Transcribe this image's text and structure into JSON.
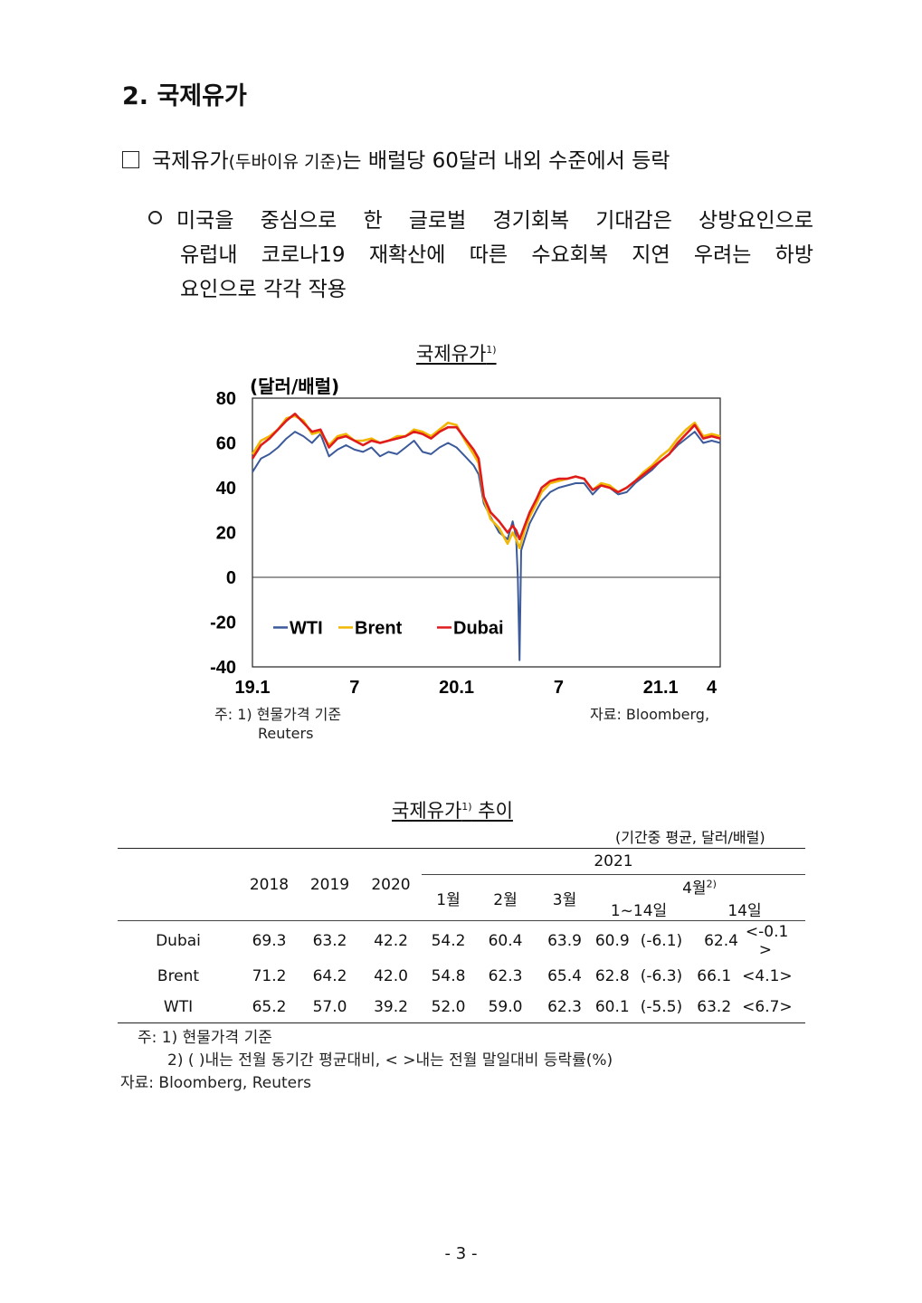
{
  "heading": "2. 국제유가",
  "bullet": {
    "main": "국제유가",
    "paren": "(두바이유 기준)",
    "rest": "는 배럴당 60달러 내외 수준에서 등락"
  },
  "sub": {
    "line1": "미국을 중심으로 한 글로벌 경기회복 기대감은 상방요인으로",
    "line2": "유럽내 코로나19 재확산에 따른 수요회복 지연 우려는 하방",
    "line3": "요인으로 각각 작용"
  },
  "chart_title": "국제유가",
  "chart_title_sup": "1)",
  "chart_data": {
    "type": "line",
    "ylabel": "(달러/배럴)",
    "ylim": [
      -40,
      80
    ],
    "yticks": [
      "80",
      "60",
      "40",
      "20",
      "0",
      "-20",
      "-40"
    ],
    "xticks": [
      "19.1",
      "7",
      "20.1",
      "7",
      "21.1",
      "4"
    ],
    "xtick_positions": [
      0,
      6,
      12,
      18,
      24,
      27
    ],
    "xlim": [
      0,
      27.5
    ],
    "legend": [
      "WTI",
      "Brent",
      "Dubai"
    ],
    "legend_placement": "bottom-left",
    "series": [
      {
        "name": "WTI",
        "color": "#3c5a9a",
        "x": [
          0,
          0.5,
          1,
          1.5,
          2,
          2.5,
          3,
          3.5,
          4,
          4.5,
          5,
          5.5,
          6,
          6.5,
          7,
          7.5,
          8,
          8.5,
          9,
          9.5,
          10,
          10.5,
          11,
          11.5,
          12,
          12.5,
          13,
          13.3,
          13.6,
          14,
          14.5,
          15,
          15.3,
          15.5,
          15.6,
          15.7,
          15.8,
          16,
          16.3,
          16.7,
          17,
          17.5,
          18,
          18.5,
          19,
          19.5,
          20,
          20.5,
          21,
          21.5,
          22,
          22.5,
          23,
          23.5,
          24,
          24.5,
          25,
          25.5,
          26,
          26.5,
          27,
          27.5
        ],
        "y": [
          47,
          53,
          55,
          58,
          62,
          65,
          63,
          60,
          64,
          54,
          57,
          59,
          57,
          56,
          58,
          54,
          56,
          55,
          58,
          61,
          56,
          55,
          58,
          60,
          58,
          54,
          50,
          46,
          33,
          27,
          20,
          17,
          25,
          18,
          0,
          -37,
          12,
          17,
          24,
          30,
          34,
          38,
          40,
          41,
          42,
          42,
          37,
          41,
          40,
          37,
          38,
          42,
          45,
          48,
          52,
          55,
          59,
          62,
          65,
          60,
          61,
          60
        ]
      },
      {
        "name": "Brent",
        "color": "#f2b705",
        "x": [
          0,
          0.5,
          1,
          1.5,
          2,
          2.5,
          3,
          3.5,
          4,
          4.5,
          5,
          5.5,
          6,
          6.5,
          7,
          7.5,
          8,
          8.5,
          9,
          9.5,
          10,
          10.5,
          11,
          11.5,
          12,
          12.5,
          13,
          13.3,
          13.6,
          14,
          14.5,
          15,
          15.3,
          15.5,
          15.7,
          16,
          16.3,
          16.7,
          17,
          17.5,
          18,
          18.5,
          19,
          19.5,
          20,
          20.5,
          21,
          21.5,
          22,
          22.5,
          23,
          23.5,
          24,
          24.5,
          25,
          25.5,
          26,
          26.5,
          27,
          27.5
        ],
        "y": [
          55,
          61,
          63,
          66,
          71,
          72,
          70,
          64,
          65,
          59,
          63,
          64,
          61,
          61,
          62,
          60,
          61,
          63,
          63,
          66,
          65,
          63,
          66,
          69,
          68,
          61,
          55,
          51,
          35,
          26,
          22,
          15,
          20,
          17,
          13,
          21,
          27,
          33,
          38,
          42,
          43,
          44,
          45,
          44,
          39,
          42,
          41,
          38,
          40,
          43,
          47,
          50,
          54,
          57,
          62,
          66,
          69,
          63,
          64,
          63
        ]
      },
      {
        "name": "Dubai",
        "color": "#e01b1b",
        "x": [
          0,
          0.5,
          1,
          1.5,
          2,
          2.5,
          3,
          3.5,
          4,
          4.5,
          5,
          5.5,
          6,
          6.5,
          7,
          7.5,
          8,
          8.5,
          9,
          9.5,
          10,
          10.5,
          11,
          11.5,
          12,
          12.5,
          13,
          13.3,
          13.6,
          14,
          14.5,
          15,
          15.3,
          15.5,
          15.7,
          16,
          16.3,
          16.7,
          17,
          17.5,
          18,
          18.5,
          19,
          19.5,
          20,
          20.5,
          21,
          21.5,
          22,
          22.5,
          23,
          23.5,
          24,
          24.5,
          25,
          25.5,
          26,
          26.5,
          27,
          27.5
        ],
        "y": [
          53,
          59,
          62,
          66,
          70,
          73,
          69,
          65,
          66,
          58,
          62,
          63,
          61,
          59,
          61,
          60,
          61,
          62,
          63,
          65,
          64,
          62,
          65,
          67,
          67,
          62,
          57,
          53,
          36,
          29,
          25,
          20,
          23,
          21,
          17,
          23,
          29,
          35,
          40,
          43,
          44,
          44,
          45,
          44,
          39,
          41,
          40,
          38,
          40,
          43,
          46,
          49,
          52,
          55,
          60,
          64,
          68,
          62,
          63,
          62
        ]
      }
    ]
  },
  "chart_note": "주: 1) 현물가격 기준",
  "chart_note_cont": "Reuters",
  "chart_source": "자료: Bloomberg,",
  "table_title": "국제유가",
  "table_title_sup": "1)",
  "table_title_rest": " 추이",
  "table_unit": "(기간중 평균, 달러/배럴)",
  "table": {
    "years": [
      "2018",
      "2019",
      "2020"
    ],
    "year2021": "2021",
    "months": [
      "1월",
      "2월",
      "3월"
    ],
    "april": "4월",
    "april_sup": "2)",
    "april_sub1": "1~14일",
    "april_sub2": "14일",
    "rows": [
      {
        "name": "Dubai",
        "v2018": "69.3",
        "v2019": "63.2",
        "v2020": "42.2",
        "m1": "54.2",
        "m2": "60.4",
        "m3": "63.9",
        "a1": "60.9",
        "a1p": "(-6.1)",
        "a2": "62.4",
        "a2p": "<-0.1 >"
      },
      {
        "name": "Brent",
        "v2018": "71.2",
        "v2019": "64.2",
        "v2020": "42.0",
        "m1": "54.8",
        "m2": "62.3",
        "m3": "65.4",
        "a1": "62.8",
        "a1p": "(-6.3)",
        "a2": "66.1",
        "a2p": "<4.1>"
      },
      {
        "name": "WTI",
        "v2018": "65.2",
        "v2019": "57.0",
        "v2020": "39.2",
        "m1": "52.0",
        "m2": "59.0",
        "m3": "62.3",
        "a1": "60.1",
        "a1p": "(-5.5)",
        "a2": "63.2",
        "a2p": "<6.7>"
      }
    ]
  },
  "table_note1": "주: 1) 현물가격 기준",
  "table_note2": "2) (    )내는 전월 동기간 평균대비, <    >내는 전월 말일대비 등락률(%)",
  "table_source": "자료: Bloomberg, Reuters",
  "page_number": "- 3 -"
}
